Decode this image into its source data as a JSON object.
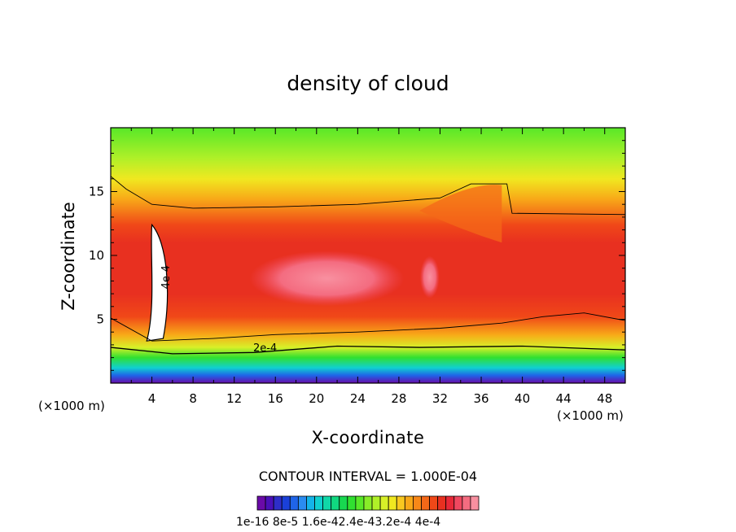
{
  "chart_data": {
    "type": "heatmap",
    "title": "density of cloud",
    "xlabel": "X-coordinate",
    "ylabel": "Z-coordinate",
    "x_unit_left": "(×1000 m)",
    "x_unit_right": "(×1000 m)",
    "xlim": [
      0,
      50
    ],
    "ylim": [
      0,
      20
    ],
    "x_ticks": [
      4,
      8,
      12,
      16,
      20,
      24,
      28,
      32,
      36,
      40,
      44,
      48
    ],
    "y_ticks": [
      5,
      10,
      15
    ],
    "contour_interval_text": "CONTOUR INTERVAL = 1.000E-04",
    "contour_labels": [
      {
        "text": "4e-4",
        "x": 5.7,
        "z": 8.3
      },
      {
        "text": "2e-4",
        "x": 15.0,
        "z": 2.5
      }
    ],
    "colorbar_labels_text": "1e-16 8e-5 1.6e-42.4e-43.2e-4 4e-4",
    "colorbar_colors": [
      "#6a0aa8",
      "#4a10b8",
      "#2e2ec8",
      "#1a40d8",
      "#1f64e8",
      "#2a8cf0",
      "#14b4e8",
      "#10d0d0",
      "#10d8a8",
      "#10d880",
      "#18d850",
      "#30e030",
      "#58e828",
      "#88ec28",
      "#b0f028",
      "#d8f028",
      "#f0e820",
      "#f8c820",
      "#f8a818",
      "#f88818",
      "#f46818",
      "#f04818",
      "#e83020",
      "#e82838",
      "#f04860",
      "#f46c80",
      "#f890a0"
    ]
  }
}
